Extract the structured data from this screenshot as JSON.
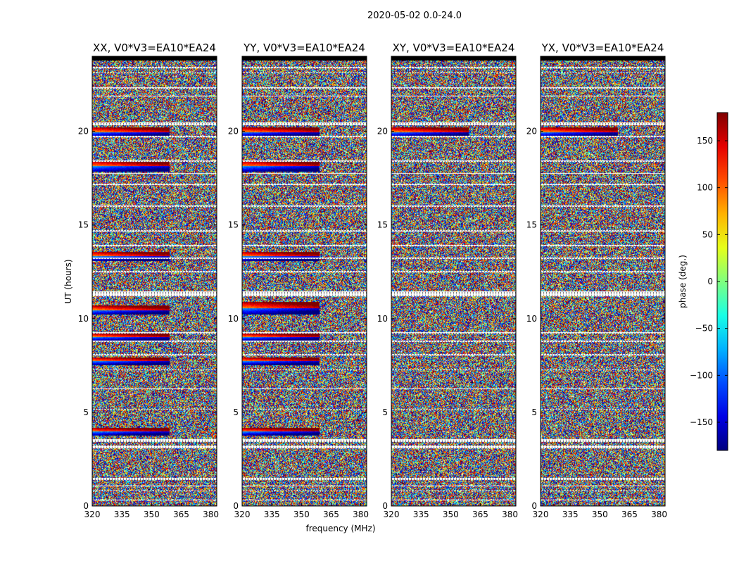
{
  "figure_title": "2020-05-02 0.0-24.0",
  "chart_data": {
    "type": "heatmap",
    "title": "2020-05-02 0.0-24.0",
    "xlabel": "frequency (MHz)",
    "ylabel": "UT (hours)",
    "xlim": [
      320,
      383
    ],
    "ylim": [
      0,
      24
    ],
    "xticks": [
      320,
      335,
      350,
      365,
      380
    ],
    "xtick_labels": [
      "320",
      "335",
      "350",
      "365",
      "380"
    ],
    "yticks": [
      0,
      5,
      10,
      15,
      20
    ],
    "ytick_labels": [
      "0",
      "5",
      "10",
      "15",
      "20"
    ],
    "panels": [
      {
        "title": "XX, V0*V3=EA10*EA24",
        "pol": "XX"
      },
      {
        "title": "YY, V0*V3=EA10*EA24",
        "pol": "YY"
      },
      {
        "title": "XY, V0*V3=EA10*EA24",
        "pol": "XY"
      },
      {
        "title": "YX, V0*V3=EA10*EA24",
        "pol": "YX"
      }
    ],
    "colorbar": {
      "label": "phase (deg.)",
      "range": [
        -180,
        180
      ],
      "colormap": "jet",
      "ticks": [
        150,
        100,
        50,
        0,
        -50,
        -100,
        -150
      ],
      "tick_labels": [
        "150",
        "100",
        "50",
        "0",
        "−50",
        "−100",
        "−150"
      ]
    },
    "flagged_ut_bands": [
      [
        0.3,
        0.35
      ],
      [
        0.8,
        0.85
      ],
      [
        1.05,
        1.1
      ],
      [
        1.4,
        1.5
      ],
      [
        3.1,
        3.25
      ],
      [
        3.45,
        3.6
      ],
      [
        5.2,
        5.25
      ],
      [
        6.3,
        6.35
      ],
      [
        7.3,
        7.35
      ],
      [
        8.1,
        8.2
      ],
      [
        8.85,
        8.9
      ],
      [
        9.3,
        9.35
      ],
      [
        11.3,
        11.55
      ],
      [
        12.6,
        12.65
      ],
      [
        13.3,
        13.4
      ],
      [
        14.0,
        14.05
      ],
      [
        14.8,
        14.85
      ],
      [
        16.1,
        16.2
      ],
      [
        17.3,
        17.35
      ],
      [
        17.9,
        17.95
      ],
      [
        18.55,
        18.6
      ],
      [
        19.85,
        19.95
      ],
      [
        20.5,
        20.65
      ],
      [
        22.05,
        22.1
      ],
      [
        22.5,
        22.55
      ],
      [
        23.3,
        23.35
      ],
      [
        23.6,
        23.65
      ]
    ],
    "coherent_ut_bands": {
      "XX": [
        [
          3.8,
          4.2
        ],
        [
          7.6,
          8.0
        ],
        [
          8.9,
          9.3
        ],
        [
          10.3,
          10.8
        ],
        [
          13.2,
          13.7
        ],
        [
          18.0,
          18.6
        ],
        [
          19.9,
          20.4
        ]
      ],
      "YY": [
        [
          3.8,
          4.2
        ],
        [
          7.6,
          8.0
        ],
        [
          8.9,
          9.3
        ],
        [
          10.3,
          11.0
        ],
        [
          13.2,
          13.7
        ],
        [
          18.0,
          18.6
        ],
        [
          19.9,
          20.4
        ]
      ],
      "XY": [
        [
          19.9,
          20.4
        ]
      ],
      "YX": [
        [
          19.9,
          20.4
        ]
      ]
    }
  }
}
